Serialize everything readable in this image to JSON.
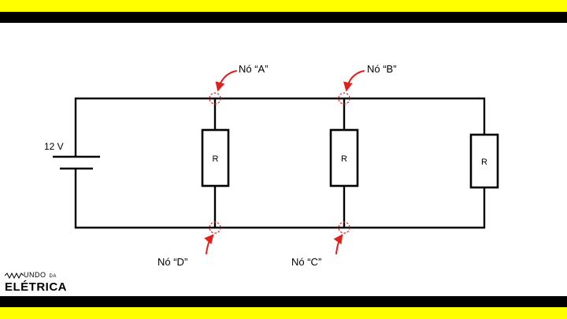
{
  "diagram": {
    "source_label": "12 V",
    "resistors": [
      {
        "label": "R"
      },
      {
        "label": "R"
      },
      {
        "label": "R"
      }
    ],
    "nodes": [
      {
        "label": "Nó “A”"
      },
      {
        "label": "Nó “B”"
      },
      {
        "label": "Nó “D”"
      },
      {
        "label": "Nó “C”"
      }
    ]
  },
  "logo": {
    "top_word": "UNDO",
    "top_small": "DA",
    "bottom_word": "ELÉTRICA"
  },
  "colors": {
    "band_yellow": "#ffff00",
    "band_black": "#000000",
    "wire": "#000000",
    "marker": "#e0201c"
  }
}
